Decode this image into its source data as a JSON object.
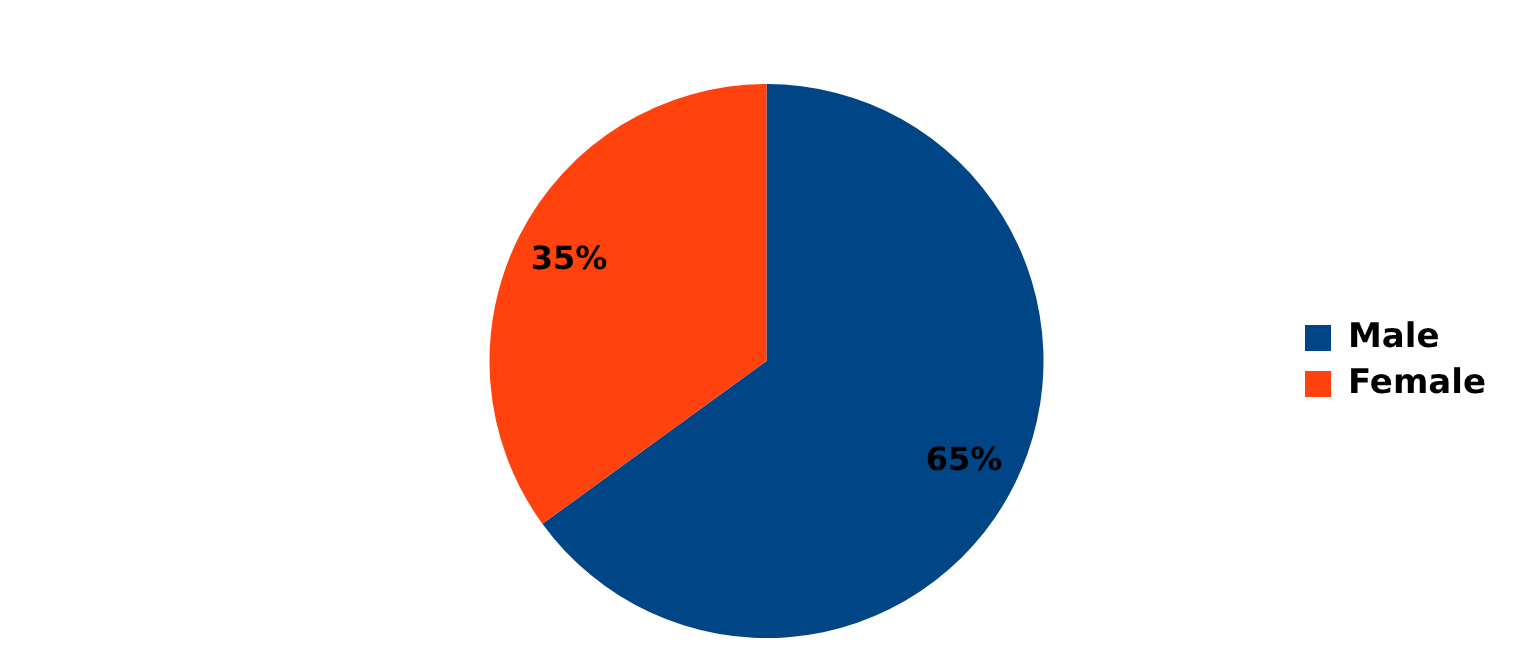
{
  "chart_data": {
    "type": "pie",
    "categories": [
      "Male",
      "Female"
    ],
    "values": [
      65,
      35
    ],
    "colors": [
      "#004586",
      "#ff420e"
    ],
    "value_labels": [
      "65%",
      "35%"
    ],
    "legend": "right"
  }
}
